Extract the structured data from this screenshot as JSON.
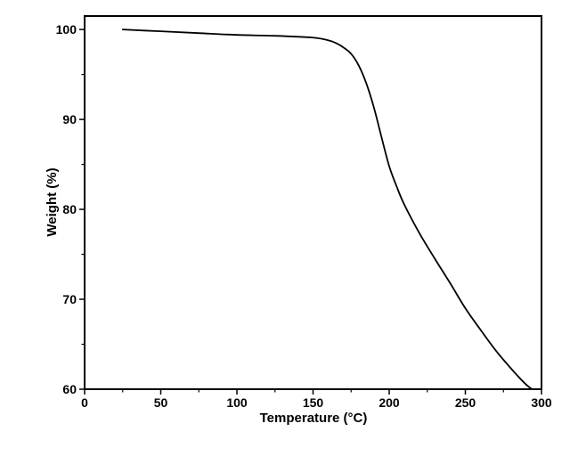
{
  "chart_data": {
    "type": "line",
    "title": "",
    "xlabel": "Temperature (°C)",
    "ylabel": "Weight (%)",
    "xlim": [
      0,
      300
    ],
    "ylim": [
      60,
      101.5
    ],
    "x_ticks": [
      0,
      50,
      100,
      150,
      200,
      250,
      300
    ],
    "x_tick_labels": [
      "0",
      "50",
      "100",
      "150",
      "200",
      "250",
      "300"
    ],
    "y_ticks": [
      60,
      70,
      80,
      90,
      100
    ],
    "y_tick_labels": [
      "60",
      "70",
      "80",
      "90",
      "100"
    ],
    "grid": false,
    "legend": "none",
    "series": [
      {
        "color": "#000000",
        "x": [
          25,
          50,
          75,
          100,
          125,
          150,
          160,
          165,
          170,
          175,
          180,
          185,
          190,
          195,
          200,
          205,
          210,
          220,
          230,
          240,
          250,
          260,
          270,
          280,
          290,
          298
        ],
        "y": [
          100.0,
          99.8,
          99.6,
          99.4,
          99.3,
          99.1,
          98.8,
          98.5,
          98.0,
          97.3,
          96.0,
          94.0,
          91.3,
          88.0,
          84.8,
          82.5,
          80.5,
          77.3,
          74.5,
          71.8,
          69.0,
          66.6,
          64.3,
          62.3,
          60.5,
          59.5
        ]
      }
    ]
  }
}
